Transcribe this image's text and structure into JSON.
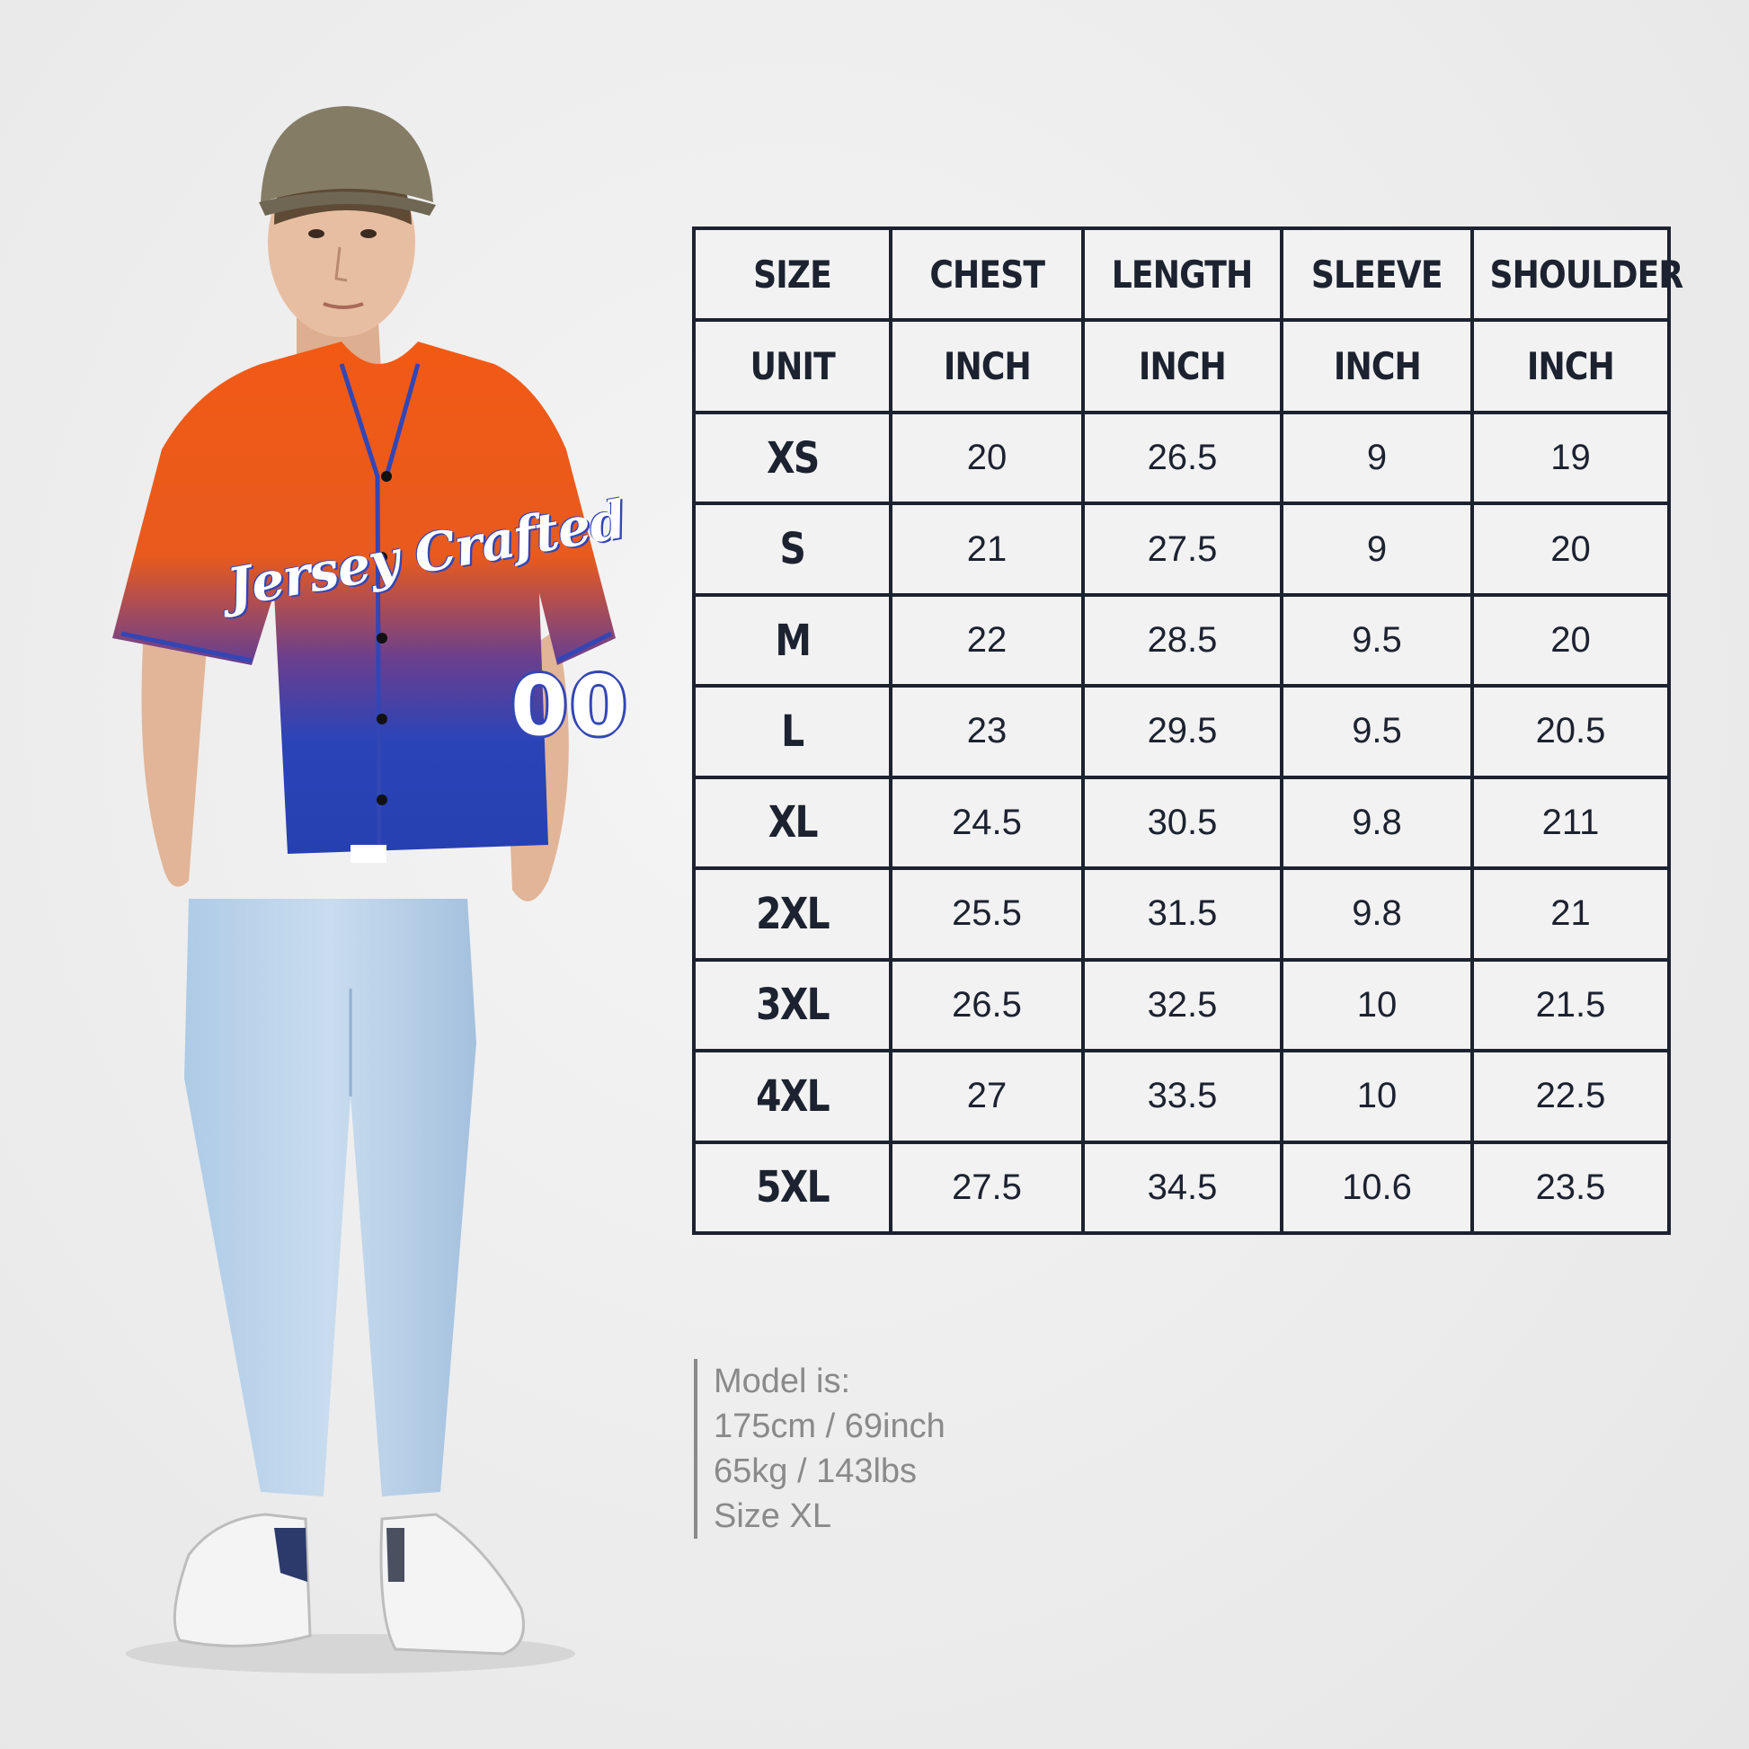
{
  "jersey": {
    "brand_text": "Jersey Crafted",
    "number": "00",
    "colors": {
      "top": "#f05a1a",
      "bottom": "#2a44b8",
      "trim": "#3346b5"
    }
  },
  "size_chart": {
    "header": [
      "SIZE",
      "CHEST",
      "LENGTH",
      "SLEEVE",
      "SHOULDER"
    ],
    "units": [
      "UNIT",
      "INCH",
      "INCH",
      "INCH",
      "INCH"
    ],
    "rows": [
      {
        "size": "XS",
        "chest": "20",
        "length": "26.5",
        "sleeve": "9",
        "shoulder": "19"
      },
      {
        "size": "S",
        "chest": "21",
        "length": "27.5",
        "sleeve": "9",
        "shoulder": "20"
      },
      {
        "size": "M",
        "chest": "22",
        "length": "28.5",
        "sleeve": "9.5",
        "shoulder": "20"
      },
      {
        "size": "L",
        "chest": "23",
        "length": "29.5",
        "sleeve": "9.5",
        "shoulder": "20.5"
      },
      {
        "size": "XL",
        "chest": "24.5",
        "length": "30.5",
        "sleeve": "9.8",
        "shoulder": "211"
      },
      {
        "size": "2XL",
        "chest": "25.5",
        "length": "31.5",
        "sleeve": "9.8",
        "shoulder": "21"
      },
      {
        "size": "3XL",
        "chest": "26.5",
        "length": "32.5",
        "sleeve": "10",
        "shoulder": "21.5"
      },
      {
        "size": "4XL",
        "chest": "27",
        "length": "33.5",
        "sleeve": "10",
        "shoulder": "22.5"
      },
      {
        "size": "5XL",
        "chest": "27.5",
        "length": "34.5",
        "sleeve": "10.6",
        "shoulder": "23.5"
      }
    ]
  },
  "model_info": {
    "lines": [
      "Model is:",
      "175cm / 69inch",
      "65kg / 143lbs",
      "Size XL"
    ]
  }
}
